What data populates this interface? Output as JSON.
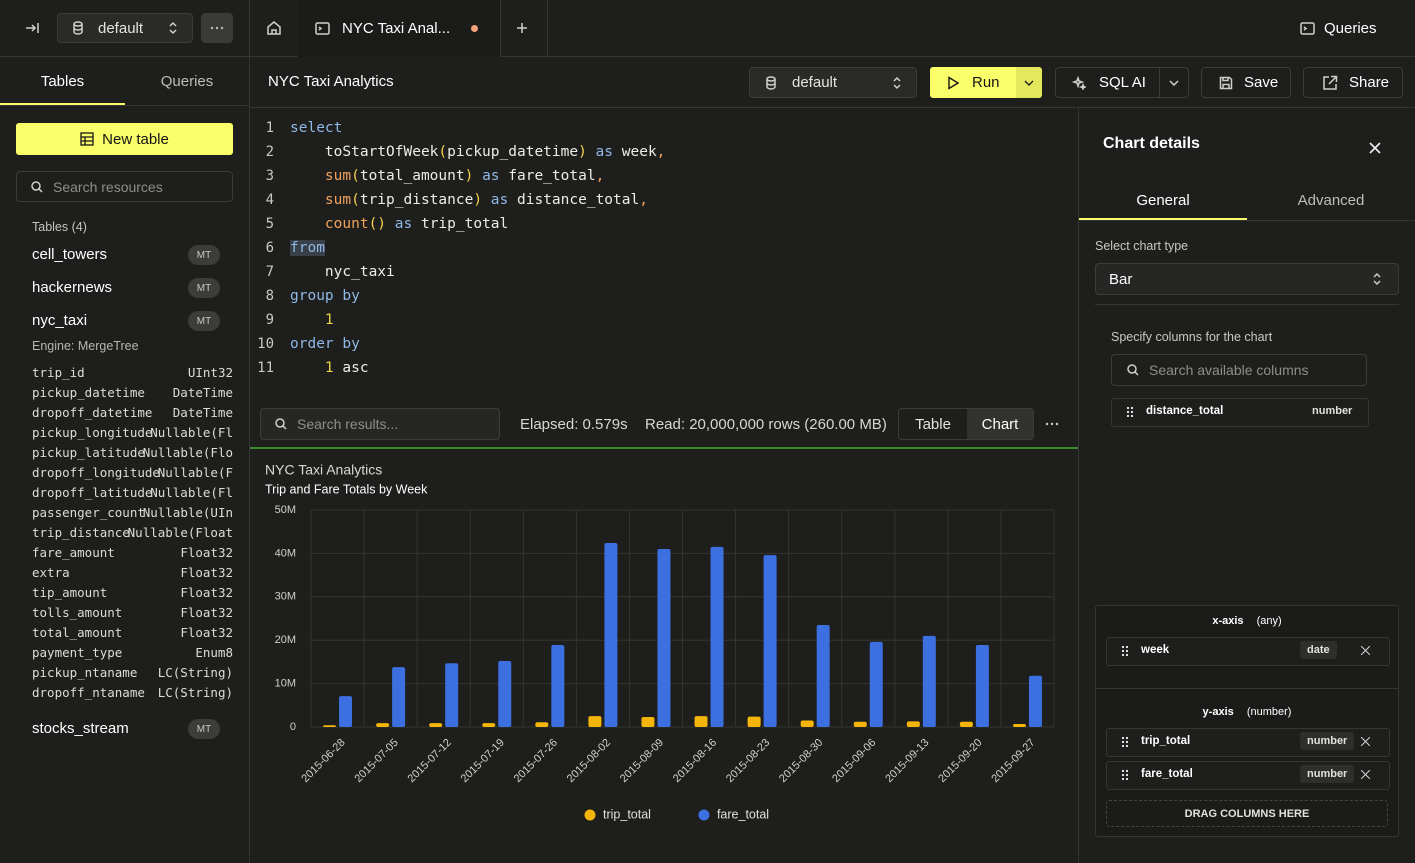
{
  "sidebar": {
    "database": "default",
    "tabs": [
      "Tables",
      "Queries"
    ],
    "new_table": "New table",
    "search_placeholder": "Search resources",
    "tables_heading": "Tables (4)",
    "tables": [
      {
        "name": "cell_towers",
        "badge": "MT"
      },
      {
        "name": "hackernews",
        "badge": "MT"
      },
      {
        "name": "nyc_taxi",
        "badge": "MT",
        "engine": "Engine: MergeTree",
        "columns": [
          [
            "trip_id",
            "UInt32"
          ],
          [
            "pickup_datetime",
            "DateTime"
          ],
          [
            "dropoff_datetime",
            "DateTime"
          ],
          [
            "pickup_longitude",
            "Nullable(Fl"
          ],
          [
            "pickup_latitude",
            "Nullable(Flo"
          ],
          [
            "dropoff_longitude",
            "Nullable(F"
          ],
          [
            "dropoff_latitude",
            "Nullable(Fl"
          ],
          [
            "passenger_count",
            "Nullable(UIn"
          ],
          [
            "trip_distance",
            "Nullable(Float"
          ],
          [
            "fare_amount",
            "Float32"
          ],
          [
            "extra",
            "Float32"
          ],
          [
            "tip_amount",
            "Float32"
          ],
          [
            "tolls_amount",
            "Float32"
          ],
          [
            "total_amount",
            "Float32"
          ],
          [
            "payment_type",
            "Enum8"
          ],
          [
            "pickup_ntaname",
            "LC(String)"
          ],
          [
            "dropoff_ntaname",
            "LC(String)"
          ]
        ]
      },
      {
        "name": "stocks_stream",
        "badge": "MT"
      }
    ]
  },
  "tabs": {
    "query_tab": "NYC Taxi Anal...",
    "right": "Queries"
  },
  "query": {
    "title": "NYC Taxi Analytics",
    "database": "default",
    "run": "Run",
    "sql_ai": "SQL AI",
    "save": "Save",
    "share": "Share"
  },
  "editor": {
    "lines": [
      {
        "number": 1,
        "tokens": [
          {
            "t": "select",
            "k": "kw"
          }
        ]
      },
      {
        "number": 2,
        "tokens": [
          {
            "t": "    toStartOfWeek",
            "k": "id"
          },
          {
            "t": "(",
            "k": "p"
          },
          {
            "t": "pickup_datetime",
            "k": "id"
          },
          {
            "t": ")",
            "k": "p"
          },
          {
            "t": " as ",
            "k": "kw"
          },
          {
            "t": "week",
            "k": "id"
          },
          {
            "t": ",",
            "k": "punct"
          }
        ]
      },
      {
        "number": 3,
        "tokens": [
          {
            "t": "    sum",
            "k": "fn"
          },
          {
            "t": "(",
            "k": "p"
          },
          {
            "t": "total_amount",
            "k": "id"
          },
          {
            "t": ")",
            "k": "p"
          },
          {
            "t": " as ",
            "k": "kw"
          },
          {
            "t": "fare_total",
            "k": "id"
          },
          {
            "t": ",",
            "k": "punct"
          }
        ]
      },
      {
        "number": 4,
        "tokens": [
          {
            "t": "    sum",
            "k": "fn"
          },
          {
            "t": "(",
            "k": "p"
          },
          {
            "t": "trip_distance",
            "k": "id"
          },
          {
            "t": ")",
            "k": "p"
          },
          {
            "t": " as ",
            "k": "kw"
          },
          {
            "t": "distance_total",
            "k": "id"
          },
          {
            "t": ",",
            "k": "punct"
          }
        ]
      },
      {
        "number": 5,
        "tokens": [
          {
            "t": "    count",
            "k": "fn"
          },
          {
            "t": "()",
            "k": "p"
          },
          {
            "t": " as ",
            "k": "kw"
          },
          {
            "t": "trip_total",
            "k": "id"
          }
        ]
      },
      {
        "number": 6,
        "tokens": [
          {
            "t": "from",
            "k": "sel"
          }
        ]
      },
      {
        "number": 7,
        "tokens": [
          {
            "t": "    nyc_taxi",
            "k": "id"
          }
        ]
      },
      {
        "number": 8,
        "tokens": [
          {
            "t": "group by",
            "k": "kw"
          }
        ]
      },
      {
        "number": 9,
        "tokens": [
          {
            "t": "    1",
            "k": "num"
          }
        ]
      },
      {
        "number": 10,
        "tokens": [
          {
            "t": "order by",
            "k": "kw"
          }
        ]
      },
      {
        "number": 11,
        "tokens": [
          {
            "t": "    1",
            "k": "num"
          },
          {
            "t": " asc",
            "k": "id"
          }
        ]
      }
    ]
  },
  "results": {
    "search_placeholder": "Search results...",
    "elapsed": "Elapsed: 0.579s",
    "read": "Read: 20,000,000 rows (260.00 MB)",
    "views": [
      "Table",
      "Chart"
    ]
  },
  "chart_data": {
    "type": "bar",
    "title": "NYC Taxi Analytics",
    "subtitle": "Trip and Fare Totals by Week",
    "categories": [
      "2015-06-28",
      "2015-07-05",
      "2015-07-12",
      "2015-07-19",
      "2015-07-26",
      "2015-08-02",
      "2015-08-09",
      "2015-08-16",
      "2015-08-23",
      "2015-08-30",
      "2015-09-06",
      "2015-09-13",
      "2015-09-20",
      "2015-09-27"
    ],
    "series": [
      {
        "name": "trip_total",
        "color": "#f5b50a",
        "values": [
          400000,
          900000,
          900000,
          900000,
          1100000,
          2500000,
          2300000,
          2500000,
          2400000,
          1500000,
          1200000,
          1300000,
          1200000,
          700000
        ]
      },
      {
        "name": "fare_total",
        "color": "#3c6fe0",
        "values": [
          7100000,
          13800000,
          14700000,
          15200000,
          18900000,
          42400000,
          41000000,
          41500000,
          39600000,
          23500000,
          19600000,
          21000000,
          18900000,
          11800000
        ]
      }
    ],
    "ylim": [
      0,
      50000000
    ],
    "yticks": [
      0,
      {
        "value": 10000000,
        "label": "10M"
      },
      {
        "value": 20000000,
        "label": "20M"
      },
      {
        "value": 30000000,
        "label": "30M"
      },
      {
        "value": 40000000,
        "label": "40M"
      },
      {
        "value": 50000000,
        "label": "50M"
      }
    ],
    "grid": true,
    "legend": "bottom"
  },
  "chart_details": {
    "title": "Chart details",
    "tabs": [
      "General",
      "Advanced"
    ],
    "chart_type_label": "Select chart type",
    "chart_type": "Bar",
    "columns_label": "Specify columns for the chart",
    "search_placeholder": "Search available columns",
    "available": [
      {
        "name": "distance_total",
        "type": "number"
      }
    ],
    "x_axis": {
      "label": "x-axis",
      "hint": "(any)",
      "columns": [
        {
          "name": "week",
          "type": "date"
        }
      ]
    },
    "y_axis": {
      "label": "y-axis",
      "hint": "(number)",
      "columns": [
        {
          "name": "trip_total",
          "type": "number"
        },
        {
          "name": "fare_total",
          "type": "number"
        }
      ]
    },
    "drop_hint": "DRAG COLUMNS HERE"
  }
}
